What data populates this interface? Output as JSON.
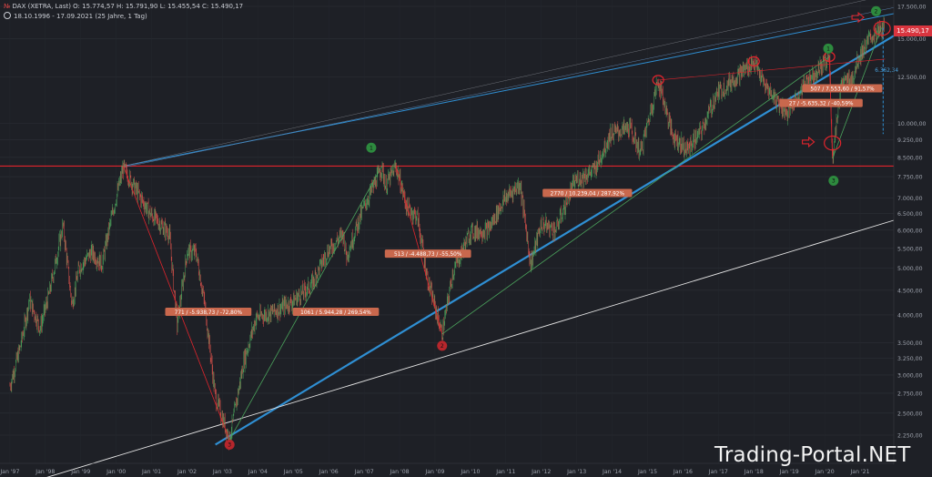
{
  "header": {
    "symbol_marker": "№",
    "title_line": "DAX (XETRA, Last)  O: 15.774,57  H: 15.791,90  L: 15.455,54  C: 15.490,17",
    "date_range": "18.10.1996 - 17.09.2021",
    "period": "(25 Jahre, 1 Tag)"
  },
  "last_price_label": "15.490,17",
  "watermark": "Trading-Portal.NET",
  "colors": {
    "background": "#1e2026",
    "candle_up": "#4ba35c",
    "candle_down": "#d4504a",
    "trend_red": "#e0242c",
    "trend_blue": "#2f8fd3",
    "trend_white": "#e6e6e6",
    "label_fill": "#c9684d"
  },
  "chart_data": {
    "type": "line",
    "title": "DAX (XETRA, Last)",
    "y_scale": "log",
    "ylim": [
      2100,
      17500
    ],
    "xlim": [
      "1997-01",
      "2021-12"
    ],
    "x_tick_labels": [
      "Jan '97",
      "Jan '98",
      "Jan '99",
      "Jan '00",
      "Jan '01",
      "Jan '02",
      "Jan '03",
      "Jan '04",
      "Jan '05",
      "Jan '06",
      "Jan '07",
      "Jan '08",
      "Jan '09",
      "Jan '10",
      "Jan '11",
      "Jan '12",
      "Jan '13",
      "Jan '14",
      "Jan '15",
      "Jan '16",
      "Jan '17",
      "Jan '18",
      "Jan '19",
      "Jan '20",
      "Jan '21"
    ],
    "y_tick_labels": [
      "17.500,00",
      "15.000,00",
      "12.500,00",
      "10.000,00",
      "9.250,00",
      "8.500,00",
      "7.750,00",
      "7.000,00",
      "6.500,00",
      "6.000,00",
      "5.500,00",
      "5.000,00",
      "4.500,00",
      "4.000,00",
      "3.500,00",
      "3.250,00",
      "3.000,00",
      "2.750,00",
      "2.500,00",
      "2.250,00"
    ],
    "y_tick_values": [
      17500,
      15000,
      12500,
      10000,
      9250,
      8500,
      7750,
      7000,
      6500,
      6000,
      5500,
      5000,
      4500,
      4000,
      3500,
      3250,
      3000,
      2750,
      2500,
      2250
    ],
    "series": [
      {
        "values": [
          {
            "x": 1997.0,
            "y": 2850
          },
          {
            "x": 1997.3,
            "y": 3450
          },
          {
            "x": 1997.55,
            "y": 4300
          },
          {
            "x": 1997.85,
            "y": 3750
          },
          {
            "x": 1998.1,
            "y": 4400
          },
          {
            "x": 1998.5,
            "y": 6150
          },
          {
            "x": 1998.75,
            "y": 4200
          },
          {
            "x": 1998.95,
            "y": 5000
          },
          {
            "x": 1999.3,
            "y": 5400
          },
          {
            "x": 1999.6,
            "y": 5100
          },
          {
            "x": 1999.85,
            "y": 6300
          },
          {
            "x": 2000.2,
            "y": 8100
          },
          {
            "x": 2000.5,
            "y": 7400
          },
          {
            "x": 2000.95,
            "y": 6500
          },
          {
            "x": 2001.5,
            "y": 5900
          },
          {
            "x": 2001.72,
            "y": 3800
          },
          {
            "x": 2002.0,
            "y": 5400
          },
          {
            "x": 2002.25,
            "y": 5400
          },
          {
            "x": 2002.5,
            "y": 4200
          },
          {
            "x": 2002.8,
            "y": 2700
          },
          {
            "x": 2003.2,
            "y": 2200
          },
          {
            "x": 2003.6,
            "y": 3200
          },
          {
            "x": 2003.95,
            "y": 3950
          },
          {
            "x": 2004.4,
            "y": 4050
          },
          {
            "x": 2004.95,
            "y": 4250
          },
          {
            "x": 2005.5,
            "y": 4600
          },
          {
            "x": 2005.95,
            "y": 5400
          },
          {
            "x": 2006.4,
            "y": 5900
          },
          {
            "x": 2006.5,
            "y": 5300
          },
          {
            "x": 2006.95,
            "y": 6600
          },
          {
            "x": 2007.5,
            "y": 8100
          },
          {
            "x": 2007.6,
            "y": 7400
          },
          {
            "x": 2007.9,
            "y": 8150
          },
          {
            "x": 2008.2,
            "y": 6700
          },
          {
            "x": 2008.5,
            "y": 6400
          },
          {
            "x": 2008.8,
            "y": 4700
          },
          {
            "x": 2009.2,
            "y": 3650
          },
          {
            "x": 2009.5,
            "y": 4900
          },
          {
            "x": 2010.0,
            "y": 5950
          },
          {
            "x": 2010.5,
            "y": 6000
          },
          {
            "x": 2010.95,
            "y": 6950
          },
          {
            "x": 2011.4,
            "y": 7500
          },
          {
            "x": 2011.7,
            "y": 5100
          },
          {
            "x": 2012.0,
            "y": 6200
          },
          {
            "x": 2012.4,
            "y": 6000
          },
          {
            "x": 2012.95,
            "y": 7600
          },
          {
            "x": 2013.5,
            "y": 8000
          },
          {
            "x": 2013.95,
            "y": 9500
          },
          {
            "x": 2014.5,
            "y": 9800
          },
          {
            "x": 2014.8,
            "y": 8700
          },
          {
            "x": 2015.3,
            "y": 12300
          },
          {
            "x": 2015.7,
            "y": 9500
          },
          {
            "x": 2016.1,
            "y": 8800
          },
          {
            "x": 2016.5,
            "y": 9600
          },
          {
            "x": 2016.95,
            "y": 11500
          },
          {
            "x": 2017.5,
            "y": 12500
          },
          {
            "x": 2018.0,
            "y": 13450
          },
          {
            "x": 2018.3,
            "y": 12000
          },
          {
            "x": 2018.95,
            "y": 10500
          },
          {
            "x": 2019.5,
            "y": 12300
          },
          {
            "x": 2019.95,
            "y": 13250
          },
          {
            "x": 2020.13,
            "y": 13750
          },
          {
            "x": 2020.22,
            "y": 8450
          },
          {
            "x": 2020.45,
            "y": 12000
          },
          {
            "x": 2020.8,
            "y": 12500
          },
          {
            "x": 2020.95,
            "y": 13700
          },
          {
            "x": 2021.3,
            "y": 15100
          },
          {
            "x": 2021.7,
            "y": 15800
          }
        ]
      }
    ],
    "annotations": [
      {
        "text": "771 / -5.938,73 / -72,80%"
      },
      {
        "text": "1061 / 5.944,28 / 269,54%"
      },
      {
        "text": "513 / -4.488,73 / -55,50%"
      },
      {
        "text": "2770 / 10.239,04 / 287,92%"
      },
      {
        "text": "27 / -5.635,32 / -40,59%"
      },
      {
        "text": "507 / 7.553,60 / 91,57%"
      },
      {
        "text": "6.362,34"
      }
    ],
    "markers": [
      "1",
      "2",
      "3",
      "1",
      "2",
      "3",
      "1",
      "2",
      "3"
    ]
  }
}
